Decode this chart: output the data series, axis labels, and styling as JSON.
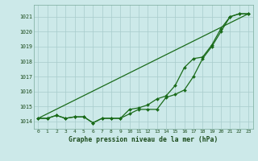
{
  "title": "Graphe pression niveau de la mer (hPa)",
  "background_color": "#cce9e9",
  "grid_color": "#a8cccc",
  "line_color": "#1a6b1a",
  "xlim": [
    -0.5,
    23.5
  ],
  "ylim": [
    1013.5,
    1021.8
  ],
  "yticks": [
    1014,
    1015,
    1016,
    1017,
    1018,
    1019,
    1020,
    1021
  ],
  "xticks": [
    0,
    1,
    2,
    3,
    4,
    5,
    6,
    7,
    8,
    9,
    10,
    11,
    12,
    13,
    14,
    15,
    16,
    17,
    18,
    19,
    20,
    21,
    22,
    23
  ],
  "series1_x": [
    0,
    1,
    2,
    3,
    4,
    5,
    6,
    7,
    8,
    9,
    10,
    11,
    12,
    13,
    14,
    15,
    16,
    17,
    18,
    19,
    20,
    21,
    22,
    23
  ],
  "series1_y": [
    1014.2,
    1014.2,
    1014.4,
    1014.2,
    1014.3,
    1014.3,
    1013.9,
    1014.2,
    1014.2,
    1014.2,
    1014.5,
    1014.8,
    1014.8,
    1014.8,
    1015.6,
    1015.8,
    1016.1,
    1017.0,
    1018.2,
    1019.0,
    1020.0,
    1021.0,
    1021.2,
    1021.2
  ],
  "series2_x": [
    0,
    1,
    2,
    3,
    4,
    5,
    6,
    7,
    8,
    9,
    10,
    11,
    12,
    13,
    14,
    15,
    16,
    17,
    18,
    19,
    20,
    21,
    22,
    23
  ],
  "series2_y": [
    1014.2,
    1014.2,
    1014.4,
    1014.2,
    1014.3,
    1014.3,
    1013.9,
    1014.2,
    1014.2,
    1014.2,
    1014.8,
    1014.9,
    1015.1,
    1015.5,
    1015.7,
    1016.4,
    1017.6,
    1018.2,
    1018.3,
    1019.1,
    1020.2,
    1021.0,
    1021.2,
    1021.2
  ],
  "series3_x": [
    0,
    23
  ],
  "series3_y": [
    1014.2,
    1021.2
  ]
}
